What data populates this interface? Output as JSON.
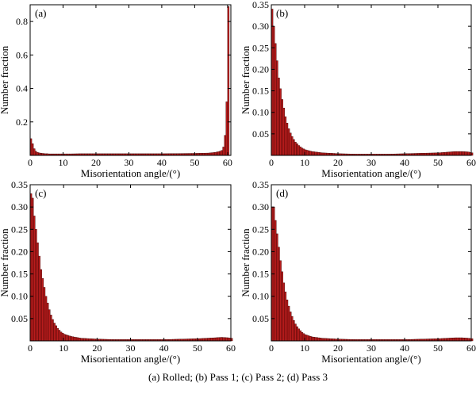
{
  "caption": "(a) Rolled; (b) Pass 1; (c) Pass 2; (d) Pass 3",
  "colors": {
    "bar_fill": "#b81c1c",
    "bar_edge": "#3a0000"
  },
  "chart_data": [
    {
      "type": "bar",
      "panel_label": "(a)",
      "xlabel": "Misorientation angle/(°)",
      "ylabel": "Number fraction",
      "xlim": [
        0,
        61
      ],
      "ylim": [
        0,
        0.9
      ],
      "xticks": [
        0,
        10,
        20,
        30,
        40,
        50,
        60
      ],
      "yticks": [
        0.2,
        0.4,
        0.6,
        0.8
      ],
      "ytick_labels": [
        "0.2",
        "0.4",
        "0.6",
        "0.8"
      ],
      "bin_width": 0.5,
      "x": [
        0.0,
        0.5,
        1.0,
        1.5,
        2.0,
        2.5,
        3.0,
        3.5,
        4.0,
        4.5,
        5.0,
        5.5,
        6.0,
        7.0,
        8.0,
        10.0,
        12.0,
        15.0,
        18.0,
        20.0,
        25.0,
        30.0,
        35.0,
        40.0,
        45.0,
        50.0,
        54.0,
        55.0,
        56.0,
        56.5,
        57.0,
        57.5,
        58.0,
        58.5,
        59.0,
        59.5,
        60.0
      ],
      "values": [
        0.1,
        0.07,
        0.04,
        0.025,
        0.018,
        0.015,
        0.013,
        0.012,
        0.011,
        0.01,
        0.01,
        0.009,
        0.009,
        0.009,
        0.009,
        0.009,
        0.009,
        0.01,
        0.01,
        0.01,
        0.01,
        0.01,
        0.01,
        0.01,
        0.011,
        0.012,
        0.014,
        0.016,
        0.018,
        0.02,
        0.022,
        0.025,
        0.03,
        0.05,
        0.12,
        0.32,
        0.89
      ]
    },
    {
      "type": "bar",
      "panel_label": "(b)",
      "xlabel": "Misorientation angle/(°)",
      "ylabel": "Number fraction",
      "xlim": [
        0,
        60
      ],
      "ylim": [
        0,
        0.35
      ],
      "xticks": [
        0,
        10,
        20,
        30,
        40,
        50,
        60
      ],
      "yticks": [
        0.05,
        0.1,
        0.15,
        0.2,
        0.25,
        0.3,
        0.35
      ],
      "ytick_labels": [
        "0.05",
        "0.10",
        "0.15",
        "0.20",
        "0.25",
        "0.30",
        "0.35"
      ],
      "bin_width": 0.5,
      "x": [
        0.0,
        0.5,
        1.0,
        1.5,
        2.0,
        2.5,
        3.0,
        3.5,
        4.0,
        4.5,
        5.0,
        5.5,
        6.0,
        6.5,
        7.0,
        7.5,
        8.0,
        9.0,
        10.0,
        12.0,
        15.0,
        20.0,
        25.0,
        30.0,
        35.0,
        40.0,
        45.0,
        50.0,
        55.0,
        57.0,
        59.0,
        60.0
      ],
      "values": [
        0.34,
        0.3,
        0.26,
        0.22,
        0.18,
        0.155,
        0.13,
        0.11,
        0.09,
        0.075,
        0.062,
        0.052,
        0.044,
        0.037,
        0.031,
        0.027,
        0.023,
        0.017,
        0.013,
        0.009,
        0.006,
        0.004,
        0.003,
        0.003,
        0.003,
        0.004,
        0.005,
        0.006,
        0.009,
        0.009,
        0.008,
        0.006
      ]
    },
    {
      "type": "bar",
      "panel_label": "(c)",
      "xlabel": "Misorientation angle/(°)",
      "ylabel": "Number fraction",
      "xlim": [
        0,
        60
      ],
      "ylim": [
        0,
        0.35
      ],
      "xticks": [
        0,
        10,
        20,
        30,
        40,
        50,
        60
      ],
      "yticks": [
        0.05,
        0.1,
        0.15,
        0.2,
        0.25,
        0.3,
        0.35
      ],
      "ytick_labels": [
        "0.05",
        "0.10",
        "0.15",
        "0.20",
        "0.25",
        "0.30",
        "0.35"
      ],
      "bin_width": 0.5,
      "x": [
        0.0,
        0.5,
        1.0,
        1.5,
        2.0,
        2.5,
        3.0,
        3.5,
        4.0,
        4.5,
        5.0,
        5.5,
        6.0,
        6.5,
        7.0,
        7.5,
        8.0,
        9.0,
        10.0,
        12.0,
        15.0,
        20.0,
        25.0,
        30.0,
        35.0,
        40.0,
        45.0,
        50.0,
        55.0,
        57.0,
        59.0,
        60.0
      ],
      "values": [
        0.33,
        0.32,
        0.28,
        0.25,
        0.22,
        0.19,
        0.16,
        0.14,
        0.12,
        0.1,
        0.085,
        0.07,
        0.058,
        0.048,
        0.04,
        0.034,
        0.028,
        0.02,
        0.015,
        0.01,
        0.006,
        0.004,
        0.003,
        0.003,
        0.003,
        0.003,
        0.004,
        0.005,
        0.007,
        0.008,
        0.007,
        0.006
      ]
    },
    {
      "type": "bar",
      "panel_label": "(d)",
      "xlabel": "Misorientation angle/(°)",
      "ylabel": "Number fraction",
      "xlim": [
        0,
        60
      ],
      "ylim": [
        0,
        0.35
      ],
      "xticks": [
        0,
        10,
        20,
        30,
        40,
        50,
        60
      ],
      "yticks": [
        0.05,
        0.1,
        0.15,
        0.2,
        0.25,
        0.3,
        0.35
      ],
      "ytick_labels": [
        "0.05",
        "0.10",
        "0.15",
        "0.20",
        "0.25",
        "0.30",
        "0.35"
      ],
      "bin_width": 0.5,
      "x": [
        0.0,
        0.5,
        1.0,
        1.5,
        2.0,
        2.5,
        3.0,
        3.5,
        4.0,
        4.5,
        5.0,
        5.5,
        6.0,
        6.5,
        7.0,
        7.5,
        8.0,
        9.0,
        10.0,
        12.0,
        15.0,
        20.0,
        25.0,
        30.0,
        35.0,
        40.0,
        45.0,
        50.0,
        55.0,
        57.0,
        59.0,
        60.0
      ],
      "values": [
        0.3,
        0.3,
        0.27,
        0.24,
        0.21,
        0.18,
        0.155,
        0.13,
        0.11,
        0.092,
        0.078,
        0.065,
        0.055,
        0.046,
        0.038,
        0.032,
        0.027,
        0.019,
        0.014,
        0.009,
        0.006,
        0.004,
        0.003,
        0.003,
        0.003,
        0.003,
        0.004,
        0.005,
        0.007,
        0.007,
        0.006,
        0.005
      ]
    }
  ]
}
